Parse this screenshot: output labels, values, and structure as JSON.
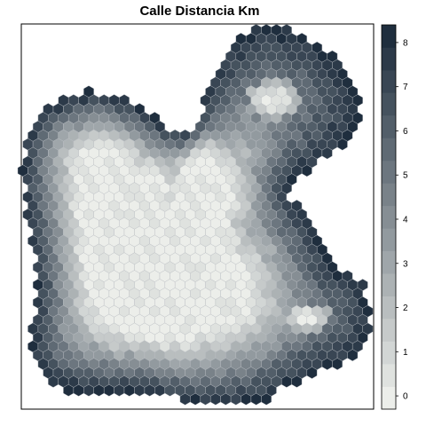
{
  "title": "Calle Distancia Km",
  "legend": {
    "ticks": [
      "0",
      "1",
      "2",
      "3",
      "4",
      "5",
      "6",
      "7",
      "8"
    ],
    "min": -0.3,
    "max": 8.4,
    "class_count": 17,
    "color_low": "#eceeea",
    "color_high": "#1f2e3e"
  },
  "chart_data": {
    "type": "heatmap",
    "title": "Calle Distancia Km",
    "value_label": "Calle Distancia Km",
    "value_range": [
      0,
      8.3
    ],
    "legend_placement": "right",
    "colorbar_ticks": [
      0,
      1,
      2,
      3,
      4,
      5,
      6,
      7,
      8
    ],
    "grid": false
  }
}
